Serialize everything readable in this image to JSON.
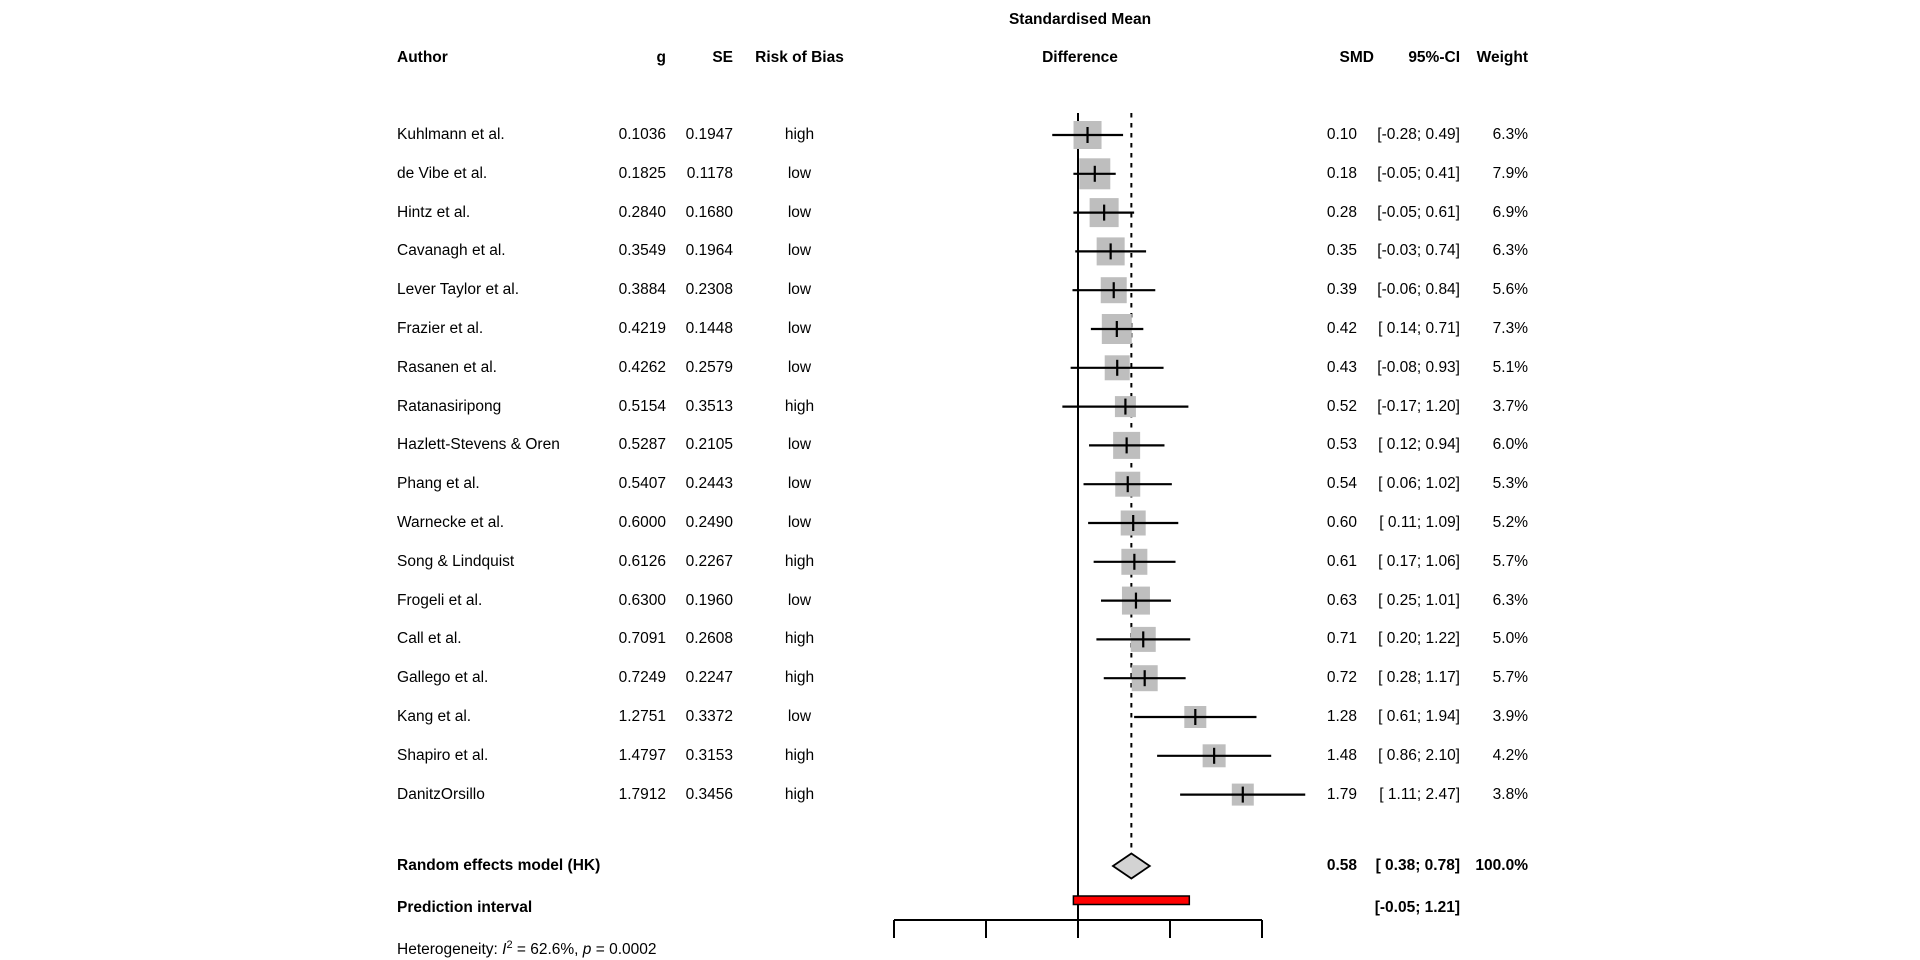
{
  "title_line1": "Standardised Mean",
  "title_line2": "Difference",
  "columns": {
    "author": "Author",
    "g": "g",
    "se": "SE",
    "rob": "Risk of Bias",
    "smd": "SMD",
    "ci": "95%-CI",
    "weight": "Weight"
  },
  "summary": {
    "random_label": "Random effects model (HK)",
    "random_smd": "0.58",
    "random_ci": "[ 0.38; 0.78]",
    "random_weight": "100.0%",
    "prediction_label": "Prediction interval",
    "prediction_ci": "[-0.05; 1.21]"
  },
  "heterogeneity": {
    "prefix": "Heterogeneity: ",
    "i": "I",
    "exp": "2",
    "mid": " = 62.6%, ",
    "p": "p",
    "suffix": " = 0.0002"
  },
  "colors": {
    "square": "#bebebe",
    "diamond": "#d3d3d3",
    "prediction_fill": "#ff0000",
    "line": "#000000"
  },
  "chart_data": {
    "type": "forest",
    "title": "Standardised Mean Difference",
    "x_axis": {
      "ticks": [
        -2,
        -1,
        0,
        1,
        2
      ],
      "range": [
        -2,
        2
      ],
      "tick_labels_visible": false,
      "zero_line": 0,
      "pooled_dashed_line": 0.58
    },
    "studies": [
      {
        "author": "Kuhlmann et al.",
        "g": "0.1036",
        "se": "0.1947",
        "rob": "high",
        "smd_text": "0.10",
        "lower": -0.28,
        "upper": 0.49,
        "ci_text": "[-0.28; 0.49]",
        "weight": 6.3,
        "weight_text": "6.3%"
      },
      {
        "author": "de Vibe et al.",
        "g": "0.1825",
        "se": "0.1178",
        "rob": "low",
        "smd_text": "0.18",
        "lower": -0.05,
        "upper": 0.41,
        "ci_text": "[-0.05; 0.41]",
        "weight": 7.9,
        "weight_text": "7.9%"
      },
      {
        "author": "Hintz et al.",
        "g": "0.2840",
        "se": "0.1680",
        "rob": "low",
        "smd_text": "0.28",
        "lower": -0.05,
        "upper": 0.61,
        "ci_text": "[-0.05; 0.61]",
        "weight": 6.9,
        "weight_text": "6.9%"
      },
      {
        "author": "Cavanagh et al.",
        "g": "0.3549",
        "se": "0.1964",
        "rob": "low",
        "smd_text": "0.35",
        "lower": -0.03,
        "upper": 0.74,
        "ci_text": "[-0.03; 0.74]",
        "weight": 6.3,
        "weight_text": "6.3%"
      },
      {
        "author": "Lever Taylor et al.",
        "g": "0.3884",
        "se": "0.2308",
        "rob": "low",
        "smd_text": "0.39",
        "lower": -0.06,
        "upper": 0.84,
        "ci_text": "[-0.06; 0.84]",
        "weight": 5.6,
        "weight_text": "5.6%"
      },
      {
        "author": "Frazier et al.",
        "g": "0.4219",
        "se": "0.1448",
        "rob": "low",
        "smd_text": "0.42",
        "lower": 0.14,
        "upper": 0.71,
        "ci_text": "[ 0.14; 0.71]",
        "weight": 7.3,
        "weight_text": "7.3%"
      },
      {
        "author": "Rasanen et al.",
        "g": "0.4262",
        "se": "0.2579",
        "rob": "low",
        "smd_text": "0.43",
        "lower": -0.08,
        "upper": 0.93,
        "ci_text": "[-0.08; 0.93]",
        "weight": 5.1,
        "weight_text": "5.1%"
      },
      {
        "author": "Ratanasiripong",
        "g": "0.5154",
        "se": "0.3513",
        "rob": "high",
        "smd_text": "0.52",
        "lower": -0.17,
        "upper": 1.2,
        "ci_text": "[-0.17; 1.20]",
        "weight": 3.7,
        "weight_text": "3.7%"
      },
      {
        "author": "Hazlett-Stevens & Oren",
        "g": "0.5287",
        "se": "0.2105",
        "rob": "low",
        "smd_text": "0.53",
        "lower": 0.12,
        "upper": 0.94,
        "ci_text": "[ 0.12; 0.94]",
        "weight": 6.0,
        "weight_text": "6.0%"
      },
      {
        "author": "Phang et al.",
        "g": "0.5407",
        "se": "0.2443",
        "rob": "low",
        "smd_text": "0.54",
        "lower": 0.06,
        "upper": 1.02,
        "ci_text": "[ 0.06; 1.02]",
        "weight": 5.3,
        "weight_text": "5.3%"
      },
      {
        "author": "Warnecke et al.",
        "g": "0.6000",
        "se": "0.2490",
        "rob": "low",
        "smd_text": "0.60",
        "lower": 0.11,
        "upper": 1.09,
        "ci_text": "[ 0.11; 1.09]",
        "weight": 5.2,
        "weight_text": "5.2%"
      },
      {
        "author": "Song & Lindquist",
        "g": "0.6126",
        "se": "0.2267",
        "rob": "high",
        "smd_text": "0.61",
        "lower": 0.17,
        "upper": 1.06,
        "ci_text": "[ 0.17; 1.06]",
        "weight": 5.7,
        "weight_text": "5.7%"
      },
      {
        "author": "Frogeli et al.",
        "g": "0.6300",
        "se": "0.1960",
        "rob": "low",
        "smd_text": "0.63",
        "lower": 0.25,
        "upper": 1.01,
        "ci_text": "[ 0.25; 1.01]",
        "weight": 6.3,
        "weight_text": "6.3%"
      },
      {
        "author": "Call et al.",
        "g": "0.7091",
        "se": "0.2608",
        "rob": "high",
        "smd_text": "0.71",
        "lower": 0.2,
        "upper": 1.22,
        "ci_text": "[ 0.20; 1.22]",
        "weight": 5.0,
        "weight_text": "5.0%"
      },
      {
        "author": "Gallego et al.",
        "g": "0.7249",
        "se": "0.2247",
        "rob": "high",
        "smd_text": "0.72",
        "lower": 0.28,
        "upper": 1.17,
        "ci_text": "[ 0.28; 1.17]",
        "weight": 5.7,
        "weight_text": "5.7%"
      },
      {
        "author": "Kang et al.",
        "g": "1.2751",
        "se": "0.3372",
        "rob": "low",
        "smd_text": "1.28",
        "lower": 0.61,
        "upper": 1.94,
        "ci_text": "[ 0.61; 1.94]",
        "weight": 3.9,
        "weight_text": "3.9%"
      },
      {
        "author": "Shapiro et al.",
        "g": "1.4797",
        "se": "0.3153",
        "rob": "high",
        "smd_text": "1.48",
        "lower": 0.86,
        "upper": 2.1,
        "ci_text": "[ 0.86; 2.10]",
        "weight": 4.2,
        "weight_text": "4.2%"
      },
      {
        "author": "DanitzOrsillo",
        "g": "1.7912",
        "se": "0.3456",
        "rob": "high",
        "smd_text": "1.79",
        "lower": 1.11,
        "upper": 2.47,
        "ci_text": "[ 1.11; 2.47]",
        "weight": 3.8,
        "weight_text": "3.8%"
      }
    ],
    "pooled": {
      "label": "Random effects model (HK)",
      "smd": 0.58,
      "lower": 0.38,
      "upper": 0.78,
      "weight": 100.0
    },
    "prediction": {
      "label": "Prediction interval",
      "lower": -0.05,
      "upper": 1.21
    },
    "heterogeneity_text": "Heterogeneity: I2 = 62.6%, p = 0.0002"
  }
}
